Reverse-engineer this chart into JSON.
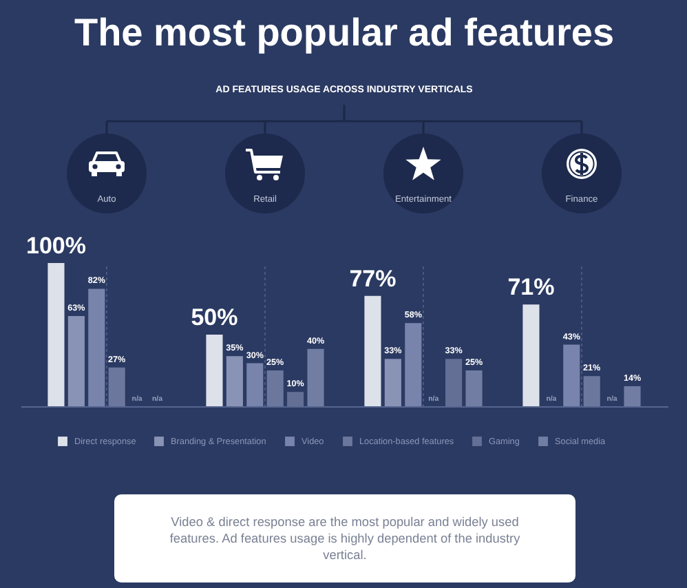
{
  "chart_data": {
    "type": "bar",
    "title": "The most popular ad features",
    "subtitle": "AD FEATURES USAGE ACROSS INDUSTRY VERTICALS",
    "categories": [
      "Auto",
      "Retail",
      "Entertainment",
      "Finance"
    ],
    "series": [
      {
        "name": "Direct response",
        "color": "#dde1ea",
        "values": [
          100,
          50,
          77,
          71
        ],
        "value_labels": [
          "100%",
          "50%",
          "77%",
          "71%"
        ]
      },
      {
        "name": "Branding & Presentation",
        "color": "#8993b6",
        "values": [
          63,
          35,
          33,
          null
        ],
        "value_labels": [
          "63%",
          "35%",
          "33%",
          "n/a"
        ]
      },
      {
        "name": "Video",
        "color": "#7884ab",
        "values": [
          82,
          30,
          58,
          43
        ],
        "value_labels": [
          "82%",
          "30%",
          "58%",
          "43%"
        ]
      },
      {
        "name": "Location-based features",
        "color": "#6c779d",
        "values": [
          27,
          25,
          null,
          21
        ],
        "value_labels": [
          "27%",
          "25%",
          "n/a",
          "21%"
        ]
      },
      {
        "name": "Gaming",
        "color": "#646f96",
        "values": [
          null,
          10,
          33,
          null
        ],
        "value_labels": [
          "n/a",
          "10%",
          "33%",
          "n/a"
        ]
      },
      {
        "name": "Social media",
        "color": "#717da3",
        "values": [
          null,
          40,
          25,
          14
        ],
        "value_labels": [
          "n/a",
          "40%",
          "25%",
          "14%"
        ]
      }
    ],
    "grid": "x",
    "legend": "bottom",
    "annotations": [
      "Video & direct response are the most popular and widely used features. Ad features usage is highly dependent of the industry vertical."
    ]
  }
}
